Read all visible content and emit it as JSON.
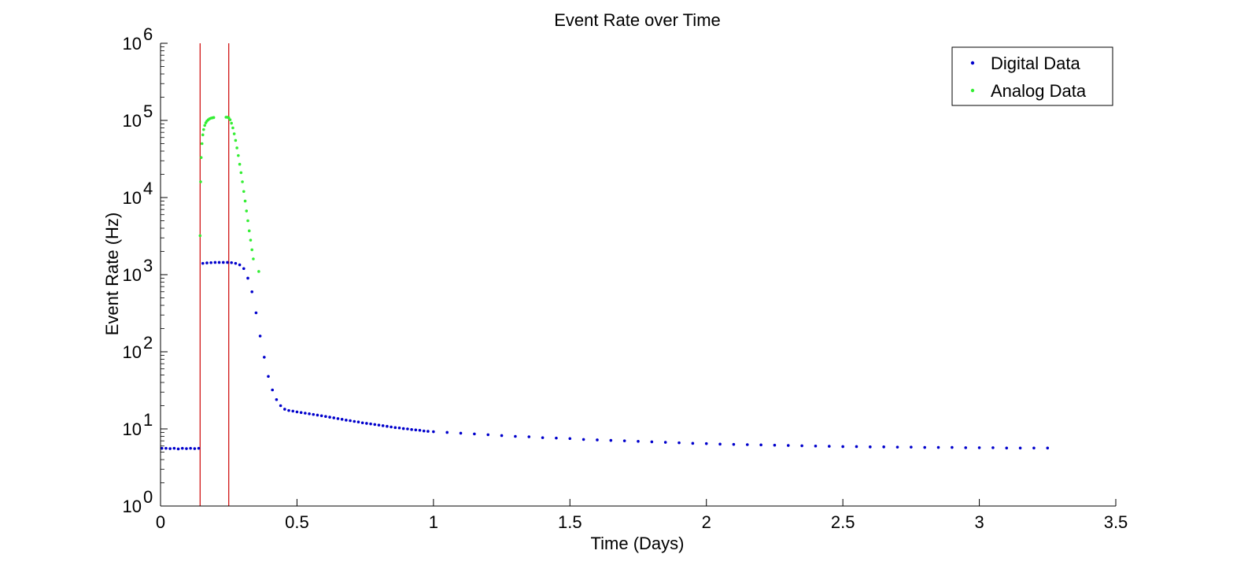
{
  "chart_data": {
    "type": "scatter",
    "title": "Event Rate over Time",
    "xlabel": "Time (Days)",
    "ylabel": "Event Rate (Hz)",
    "xlim": [
      0,
      3.5
    ],
    "ylim": [
      1,
      1000000
    ],
    "yscale": "log",
    "grid": false,
    "legend_position": "top-right",
    "x_ticks": [
      0,
      0.5,
      1,
      1.5,
      2,
      2.5,
      3,
      3.5
    ],
    "x_tick_labels": [
      "0",
      "0.5",
      "1",
      "1.5",
      "2",
      "2.5",
      "3",
      "3.5"
    ],
    "y_ticks": [
      1,
      10,
      100,
      1000,
      10000,
      100000,
      1000000
    ],
    "y_tick_labels": [
      {
        "base": "10",
        "exp": "0"
      },
      {
        "base": "10",
        "exp": "1"
      },
      {
        "base": "10",
        "exp": "2"
      },
      {
        "base": "10",
        "exp": "3"
      },
      {
        "base": "10",
        "exp": "4"
      },
      {
        "base": "10",
        "exp": "5"
      },
      {
        "base": "10",
        "exp": "6"
      }
    ],
    "vertical_lines": [
      {
        "x": 0.145,
        "color": "#cc0000"
      },
      {
        "x": 0.25,
        "color": "#cc0000"
      }
    ],
    "series": [
      {
        "name": "Digital Data",
        "color": "#0000cc",
        "points": [
          [
            0.005,
            5.6
          ],
          [
            0.02,
            5.6
          ],
          [
            0.035,
            5.55
          ],
          [
            0.05,
            5.6
          ],
          [
            0.065,
            5.5
          ],
          [
            0.08,
            5.6
          ],
          [
            0.095,
            5.55
          ],
          [
            0.11,
            5.6
          ],
          [
            0.125,
            5.55
          ],
          [
            0.14,
            5.6
          ],
          [
            0.155,
            1400
          ],
          [
            0.17,
            1420
          ],
          [
            0.185,
            1430
          ],
          [
            0.2,
            1440
          ],
          [
            0.215,
            1440
          ],
          [
            0.23,
            1440
          ],
          [
            0.245,
            1440
          ],
          [
            0.26,
            1430
          ],
          [
            0.275,
            1400
          ],
          [
            0.29,
            1340
          ],
          [
            0.305,
            1200
          ],
          [
            0.32,
            900
          ],
          [
            0.335,
            600
          ],
          [
            0.35,
            320
          ],
          [
            0.365,
            160
          ],
          [
            0.38,
            85
          ],
          [
            0.395,
            48
          ],
          [
            0.41,
            32
          ],
          [
            0.425,
            24
          ],
          [
            0.44,
            20
          ],
          [
            0.455,
            18
          ],
          [
            0.47,
            17.3
          ],
          [
            0.485,
            17
          ],
          [
            0.5,
            16.6
          ],
          [
            0.515,
            16.3
          ],
          [
            0.53,
            16
          ],
          [
            0.545,
            15.7
          ],
          [
            0.56,
            15.4
          ],
          [
            0.575,
            15.1
          ],
          [
            0.59,
            14.8
          ],
          [
            0.605,
            14.5
          ],
          [
            0.62,
            14.2
          ],
          [
            0.635,
            13.9
          ],
          [
            0.65,
            13.6
          ],
          [
            0.665,
            13.3
          ],
          [
            0.68,
            13
          ],
          [
            0.695,
            12.8
          ],
          [
            0.71,
            12.5
          ],
          [
            0.725,
            12.3
          ],
          [
            0.74,
            12
          ],
          [
            0.755,
            11.8
          ],
          [
            0.77,
            11.6
          ],
          [
            0.785,
            11.4
          ],
          [
            0.8,
            11.2
          ],
          [
            0.815,
            11
          ],
          [
            0.83,
            10.8
          ],
          [
            0.845,
            10.6
          ],
          [
            0.86,
            10.4
          ],
          [
            0.875,
            10.3
          ],
          [
            0.89,
            10.1
          ],
          [
            0.905,
            10
          ],
          [
            0.92,
            9.8
          ],
          [
            0.935,
            9.7
          ],
          [
            0.95,
            9.6
          ],
          [
            0.965,
            9.4
          ],
          [
            0.98,
            9.3
          ],
          [
            1.0,
            9.2
          ],
          [
            1.05,
            9.0
          ],
          [
            1.1,
            8.8
          ],
          [
            1.15,
            8.6
          ],
          [
            1.2,
            8.4
          ],
          [
            1.25,
            8.2
          ],
          [
            1.3,
            8.0
          ],
          [
            1.35,
            7.9
          ],
          [
            1.4,
            7.7
          ],
          [
            1.45,
            7.6
          ],
          [
            1.5,
            7.5
          ],
          [
            1.55,
            7.3
          ],
          [
            1.6,
            7.2
          ],
          [
            1.65,
            7.1
          ],
          [
            1.7,
            7.0
          ],
          [
            1.75,
            6.9
          ],
          [
            1.8,
            6.8
          ],
          [
            1.85,
            6.7
          ],
          [
            1.9,
            6.6
          ],
          [
            1.95,
            6.5
          ],
          [
            2.0,
            6.45
          ],
          [
            2.05,
            6.35
          ],
          [
            2.1,
            6.3
          ],
          [
            2.15,
            6.25
          ],
          [
            2.2,
            6.2
          ],
          [
            2.25,
            6.15
          ],
          [
            2.3,
            6.1
          ],
          [
            2.35,
            6.05
          ],
          [
            2.4,
            6.0
          ],
          [
            2.45,
            5.95
          ],
          [
            2.5,
            5.9
          ],
          [
            2.55,
            5.9
          ],
          [
            2.6,
            5.85
          ],
          [
            2.65,
            5.85
          ],
          [
            2.7,
            5.8
          ],
          [
            2.75,
            5.8
          ],
          [
            2.8,
            5.75
          ],
          [
            2.85,
            5.75
          ],
          [
            2.9,
            5.75
          ],
          [
            2.95,
            5.7
          ],
          [
            3.0,
            5.7
          ],
          [
            3.05,
            5.7
          ],
          [
            3.1,
            5.65
          ],
          [
            3.15,
            5.65
          ],
          [
            3.2,
            5.65
          ],
          [
            3.25,
            5.65
          ]
        ]
      },
      {
        "name": "Analog Data",
        "color": "#33ee33",
        "points": [
          [
            0.145,
            3200
          ],
          [
            0.147,
            16000
          ],
          [
            0.149,
            33000
          ],
          [
            0.152,
            50000
          ],
          [
            0.155,
            65000
          ],
          [
            0.158,
            76000
          ],
          [
            0.162,
            86000
          ],
          [
            0.166,
            93000
          ],
          [
            0.17,
            98000
          ],
          [
            0.175,
            102000
          ],
          [
            0.18,
            105000
          ],
          [
            0.185,
            107000
          ],
          [
            0.19,
            108000
          ],
          [
            0.195,
            109000
          ],
          [
            0.24,
            110000
          ],
          [
            0.245,
            110000
          ],
          [
            0.25,
            108000
          ],
          [
            0.255,
            102000
          ],
          [
            0.26,
            92000
          ],
          [
            0.265,
            80000
          ],
          [
            0.27,
            67000
          ],
          [
            0.275,
            55000
          ],
          [
            0.28,
            44000
          ],
          [
            0.285,
            35000
          ],
          [
            0.29,
            27000
          ],
          [
            0.295,
            21000
          ],
          [
            0.3,
            16000
          ],
          [
            0.305,
            12000
          ],
          [
            0.31,
            9000
          ],
          [
            0.315,
            6700
          ],
          [
            0.32,
            5000
          ],
          [
            0.325,
            3700
          ],
          [
            0.33,
            2800
          ],
          [
            0.335,
            2100
          ],
          [
            0.34,
            1600
          ],
          [
            0.36,
            1100
          ]
        ]
      }
    ]
  }
}
